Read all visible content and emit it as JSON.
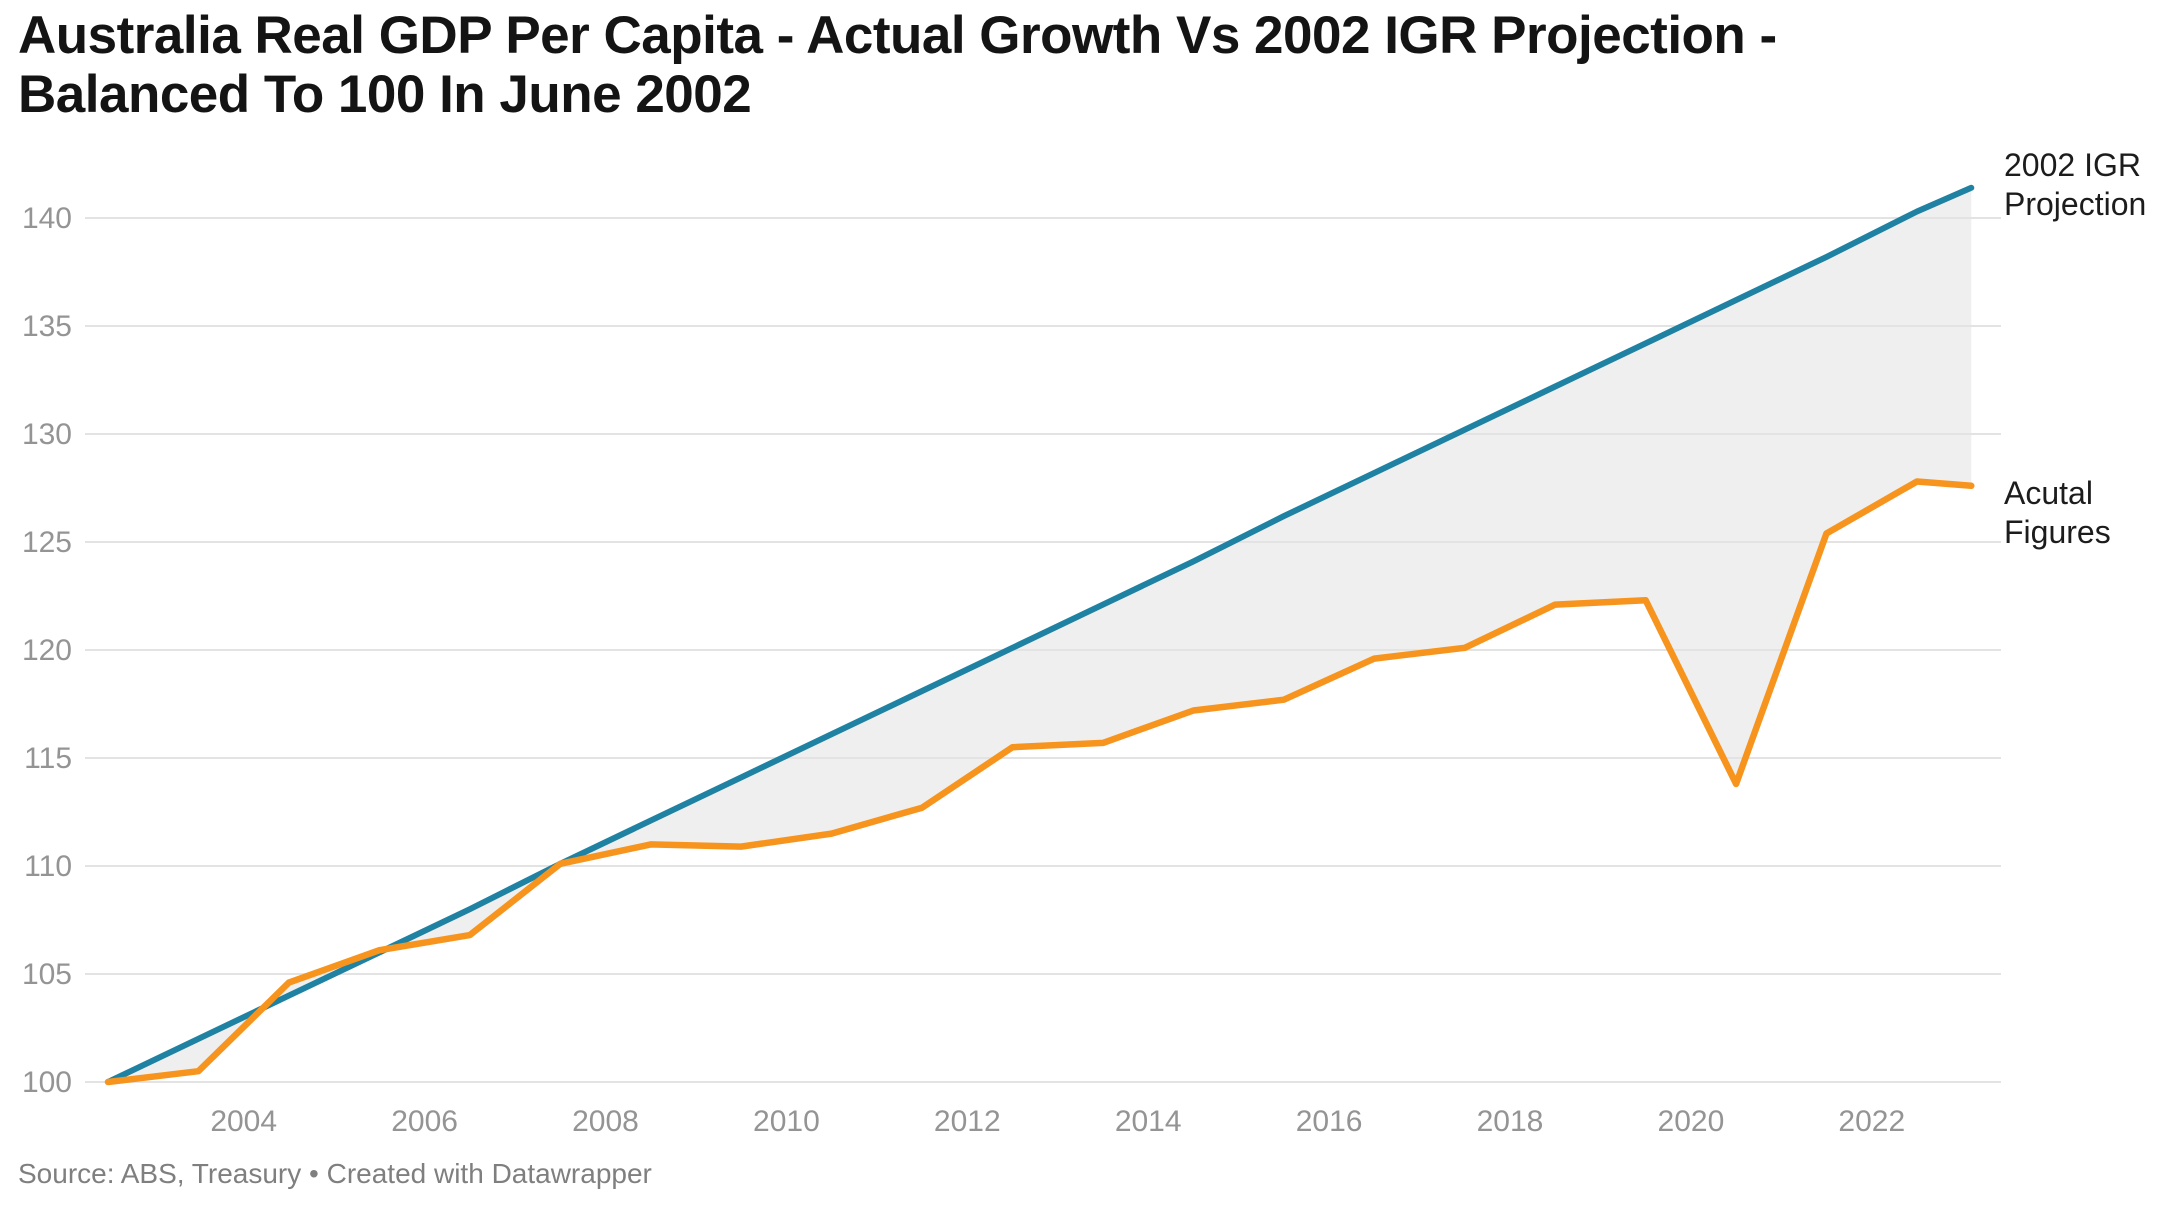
{
  "header": {
    "title": "Australia Real GDP Per Capita - Actual Growth Vs 2002 IGR Projection - Balanced To 100 In June 2002"
  },
  "legend": {
    "projection": "2002 IGR\nProjection",
    "actual": "Acutal\nFigures"
  },
  "footer": {
    "source": "Source: ABS, Treasury • Created with Datawrapper"
  },
  "colors": {
    "projection_line": "#1f82a3",
    "actual_line": "#f7941d",
    "gap_fill": "#efefef",
    "gridline": "#e3e3e3",
    "tick_text": "#949494",
    "background": "#ffffff"
  },
  "chart_data": {
    "type": "line",
    "title": "Australia Real GDP Per Capita - Actual Growth Vs 2002 IGR Projection - Balanced To 100 In June 2002",
    "x_unit": "year (financial year ending June, decimal .5 = June)",
    "x": [
      2002.5,
      2003.5,
      2004.5,
      2005.5,
      2006.5,
      2007.5,
      2008.5,
      2009.5,
      2010.5,
      2011.5,
      2012.5,
      2013.5,
      2014.5,
      2015.5,
      2016.5,
      2017.5,
      2018.5,
      2019.5,
      2020.5,
      2021.5,
      2022.5,
      2023.1
    ],
    "series": [
      {
        "name": "2002 IGR Projection",
        "color": "#1f82a3",
        "values": [
          100,
          102.0,
          104.0,
          106.0,
          108.0,
          110.1,
          112.1,
          114.1,
          116.1,
          118.1,
          120.1,
          122.1,
          124.1,
          126.2,
          128.2,
          130.2,
          132.2,
          134.2,
          136.2,
          138.2,
          140.3,
          141.4
        ]
      },
      {
        "name": "Acutal Figures",
        "color": "#f7941d",
        "values": [
          100,
          100.5,
          104.6,
          106.1,
          106.8,
          110.1,
          111.0,
          110.9,
          111.5,
          112.7,
          115.5,
          115.7,
          117.2,
          117.7,
          119.6,
          120.1,
          122.1,
          122.3,
          113.8,
          125.4,
          127.8,
          127.6
        ]
      }
    ],
    "shaded_gap_between_series": true,
    "y_ticks": [
      100,
      105,
      110,
      115,
      120,
      125,
      130,
      135,
      140
    ],
    "x_ticks": [
      2004,
      2006,
      2008,
      2010,
      2012,
      2014,
      2016,
      2018,
      2020,
      2022
    ],
    "ylim": [
      100,
      142.6
    ],
    "xlim": [
      2002.5,
      2023.1
    ],
    "grid": "horizontal",
    "legend_position": "right-of-line-ends"
  }
}
